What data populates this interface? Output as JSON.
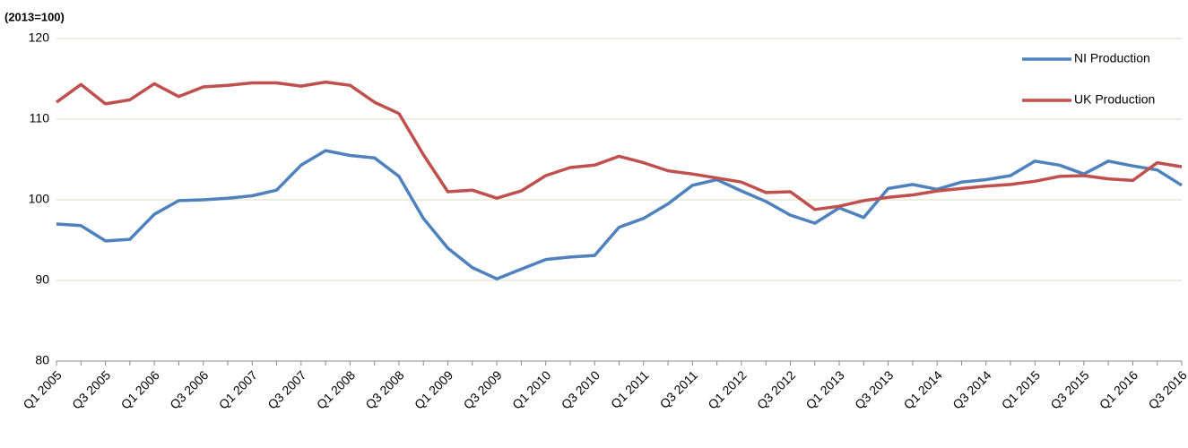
{
  "chart_data": {
    "type": "line",
    "subtitle": "(2013=100)",
    "categories": [
      "Q1 2005",
      null,
      "Q3 2005",
      null,
      "Q1 2006",
      null,
      "Q3 2006",
      null,
      "Q1 2007",
      null,
      "Q3 2007",
      null,
      "Q1 2008",
      null,
      "Q3 2008",
      null,
      "Q1 2009",
      null,
      "Q3 2009",
      null,
      "Q1 2010",
      null,
      "Q3 2010",
      null,
      "Q1 2011",
      null,
      "Q3 2011",
      null,
      "Q1 2012",
      null,
      "Q3 2012",
      null,
      "Q1 2013",
      null,
      "Q3 2013",
      null,
      "Q1 2014",
      null,
      "Q3 2014",
      null,
      "Q1 2015",
      null,
      "Q3 2015",
      null,
      "Q1 2016",
      null,
      "Q3 2016"
    ],
    "series": [
      {
        "name": "NI Production",
        "color": "#4f81bd",
        "values": [
          97.0,
          96.8,
          94.9,
          95.1,
          98.2,
          99.9,
          100.0,
          100.2,
          100.5,
          101.2,
          104.3,
          106.1,
          105.5,
          105.2,
          102.9,
          97.7,
          94.0,
          91.6,
          90.2,
          91.4,
          92.6,
          92.9,
          93.1,
          96.6,
          97.7,
          99.5,
          101.8,
          102.5,
          101.1,
          99.8,
          98.1,
          97.1,
          99.0,
          97.8,
          101.4,
          101.9,
          101.3,
          102.2,
          102.5,
          103.0,
          104.8,
          104.3,
          103.2,
          104.8,
          104.2,
          103.7,
          101.8
        ]
      },
      {
        "name": "UK Production",
        "color": "#c0504d",
        "values": [
          112.1,
          114.3,
          111.9,
          112.4,
          114.4,
          112.8,
          114.0,
          114.2,
          114.5,
          114.5,
          114.1,
          114.6,
          114.2,
          112.1,
          110.7,
          105.6,
          101.0,
          101.2,
          100.2,
          101.1,
          103.0,
          104.0,
          104.3,
          105.4,
          104.6,
          103.6,
          103.2,
          102.7,
          102.2,
          100.9,
          101.0,
          98.8,
          99.2,
          99.9,
          100.3,
          100.6,
          101.1,
          101.4,
          101.7,
          101.9,
          102.3,
          102.9,
          103.0,
          102.6,
          102.4,
          104.6,
          104.1
        ]
      }
    ],
    "ylim": [
      80,
      120
    ],
    "yticks": [
      80,
      90,
      100,
      110,
      120
    ],
    "grid": true,
    "legend": "top-right"
  }
}
